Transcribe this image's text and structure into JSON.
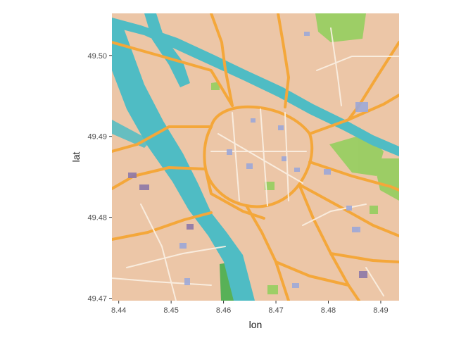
{
  "chart_data": {
    "type": "map",
    "basemap": "watercolor tile map",
    "xlabel": "lon",
    "ylabel": "lat",
    "xlim": [
      8.4387,
      8.4935
    ],
    "ylim": [
      49.4697,
      49.5052
    ],
    "x_ticks": [
      {
        "value": 8.44,
        "label": "8.44"
      },
      {
        "value": 8.45,
        "label": "8.45"
      },
      {
        "value": 8.46,
        "label": "8.46"
      },
      {
        "value": 8.47,
        "label": "8.47"
      },
      {
        "value": 8.48,
        "label": "8.48"
      },
      {
        "value": 8.49,
        "label": "8.49"
      }
    ],
    "y_ticks": [
      {
        "value": 49.47,
        "label": "49.47"
      },
      {
        "value": 49.48,
        "label": "49.48"
      },
      {
        "value": 49.49,
        "label": "49.49"
      },
      {
        "value": 49.5,
        "label": "49.50"
      }
    ],
    "grid": false,
    "colors": {
      "land": "#ecc6a7",
      "water": "#4fbcc4",
      "major_road": "#f4a73a",
      "minor_road": "#fbf1e4",
      "park": "#8fcf5a",
      "building": "#9da8d8",
      "background": "#ffffff"
    }
  }
}
